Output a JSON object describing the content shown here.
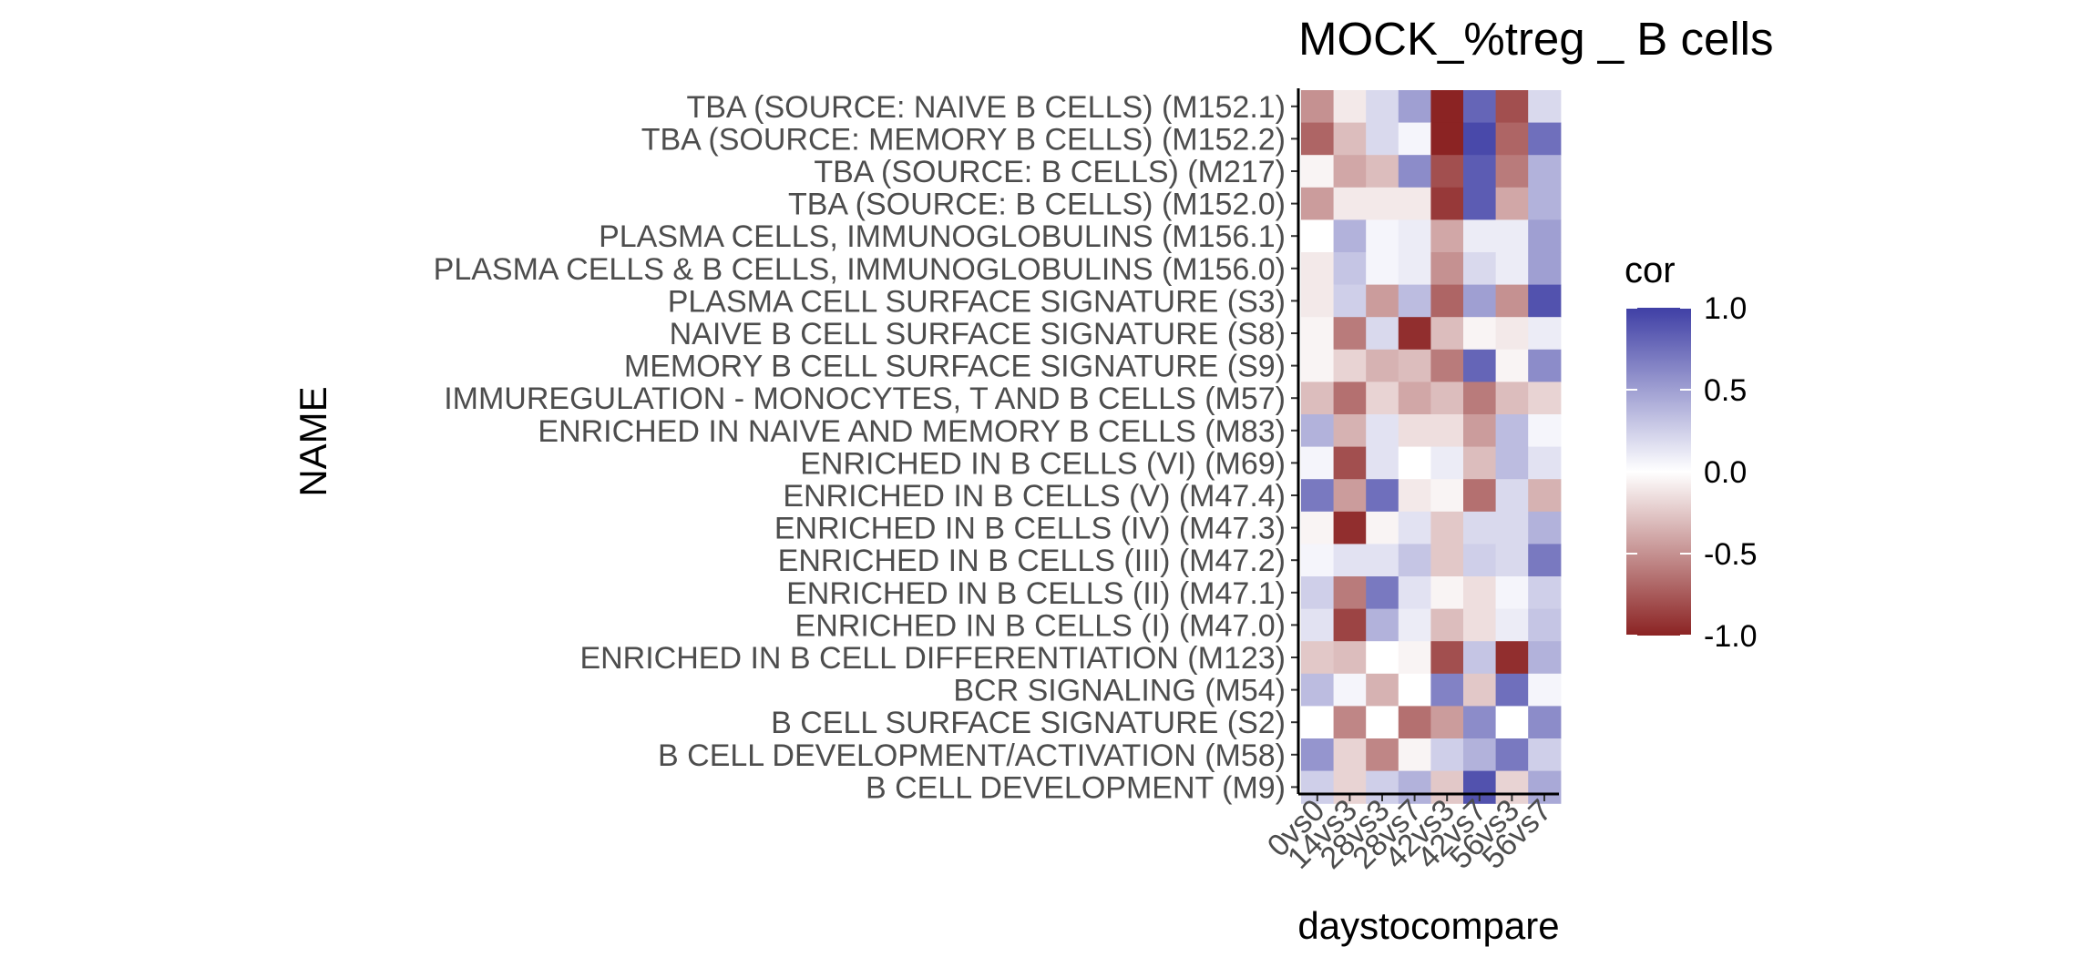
{
  "chart_data": {
    "type": "heatmap",
    "title": "MOCK_%treg _ B cells",
    "xlabel": "daystocompare",
    "ylabel": "NAME",
    "x_categories": [
      "0vs0",
      "14vs3",
      "28vs3",
      "28vs7",
      "42vs3",
      "42vs7",
      "56vs3",
      "56vs7"
    ],
    "y_categories": [
      "TBA (SOURCE: NAIVE B CELLS) (M152.1)",
      "TBA (SOURCE: MEMORY B CELLS) (M152.2)",
      "TBA (SOURCE: B CELLS) (M217)",
      "TBA (SOURCE: B CELLS) (M152.0)",
      "PLASMA CELLS, IMMUNOGLOBULINS (M156.1)",
      "PLASMA CELLS & B CELLS, IMMUNOGLOBULINS (M156.0)",
      "PLASMA CELL SURFACE SIGNATURE (S3)",
      "NAIVE B CELL SURFACE SIGNATURE (S8)",
      "MEMORY B CELL SURFACE SIGNATURE (S9)",
      "IMMUREGULATION - MONOCYTES, T AND B CELLS (M57)",
      "ENRICHED IN NAIVE AND MEMORY B CELLS (M83)",
      "ENRICHED IN B CELLS (VI) (M69)",
      "ENRICHED IN B CELLS (V) (M47.4)",
      "ENRICHED IN B CELLS (IV) (M47.3)",
      "ENRICHED IN B CELLS (III) (M47.2)",
      "ENRICHED IN B CELLS (II) (M47.1)",
      "ENRICHED IN B CELLS (I) (M47.0)",
      "ENRICHED IN B CELL DIFFERENTIATION (M123)",
      "BCR SIGNALING (M54)",
      "B CELL SURFACE SIGNATURE (S2)",
      "B CELL DEVELOPMENT/ACTIVATION (M58)",
      "B CELL DEVELOPMENT (M9)"
    ],
    "values": [
      [
        -0.5,
        -0.1,
        0.2,
        0.5,
        -1.0,
        0.8,
        -0.8,
        0.2
      ],
      [
        -0.7,
        -0.3,
        0.2,
        0.05,
        -1.0,
        0.95,
        -0.7,
        0.75
      ],
      [
        -0.05,
        -0.4,
        -0.3,
        0.6,
        -0.8,
        0.85,
        -0.6,
        0.4
      ],
      [
        -0.45,
        -0.1,
        -0.1,
        -0.1,
        -0.9,
        0.85,
        -0.4,
        0.4
      ],
      [
        0.0,
        0.4,
        0.05,
        0.1,
        -0.4,
        0.1,
        0.1,
        0.5
      ],
      [
        -0.1,
        0.3,
        0.05,
        0.1,
        -0.5,
        0.2,
        0.1,
        0.5
      ],
      [
        -0.1,
        0.25,
        -0.45,
        0.35,
        -0.7,
        0.5,
        -0.5,
        0.9
      ],
      [
        -0.05,
        -0.6,
        0.2,
        -0.95,
        -0.3,
        -0.05,
        -0.1,
        0.1
      ],
      [
        -0.05,
        -0.2,
        -0.35,
        -0.3,
        -0.6,
        0.8,
        -0.05,
        0.6
      ],
      [
        -0.3,
        -0.65,
        -0.2,
        -0.4,
        -0.3,
        -0.6,
        -0.3,
        -0.2
      ],
      [
        0.4,
        -0.35,
        0.15,
        -0.15,
        -0.15,
        -0.45,
        0.35,
        0.05
      ],
      [
        0.05,
        -0.8,
        0.15,
        0.0,
        0.1,
        -0.3,
        0.35,
        0.15
      ],
      [
        0.7,
        -0.45,
        0.75,
        -0.1,
        -0.05,
        -0.65,
        0.2,
        -0.35
      ],
      [
        -0.05,
        -0.95,
        -0.05,
        0.15,
        -0.25,
        0.2,
        0.2,
        0.4
      ],
      [
        0.05,
        0.15,
        0.15,
        0.3,
        -0.25,
        0.25,
        0.2,
        0.7
      ],
      [
        0.25,
        -0.6,
        0.7,
        0.15,
        -0.05,
        -0.15,
        0.05,
        0.25
      ],
      [
        0.15,
        -0.85,
        0.4,
        0.1,
        -0.3,
        -0.15,
        0.1,
        0.3
      ],
      [
        -0.25,
        -0.3,
        0.0,
        -0.05,
        -0.8,
        0.3,
        -0.95,
        0.4
      ],
      [
        0.35,
        0.05,
        -0.35,
        0.0,
        0.65,
        -0.25,
        0.75,
        0.05
      ],
      [
        0.0,
        -0.55,
        0.0,
        -0.65,
        -0.45,
        0.6,
        0.0,
        0.6
      ],
      [
        0.55,
        -0.2,
        -0.55,
        -0.05,
        0.25,
        0.4,
        0.7,
        0.25
      ],
      [
        0.25,
        -0.2,
        0.25,
        0.4,
        -0.25,
        0.9,
        -0.2,
        0.45
      ]
    ],
    "legend": {
      "title": "cor",
      "ticks": [
        1.0,
        0.5,
        0.0,
        -0.5,
        -1.0
      ],
      "tick_labels": [
        "1.0",
        "0.5",
        "0.0",
        "-0.5",
        "-1.0"
      ],
      "range": [
        -1.0,
        1.0
      ],
      "low_color": "#8b2323",
      "mid_color": "#ffffff",
      "high_color": "#3f3fa5",
      "placement": "right"
    }
  }
}
